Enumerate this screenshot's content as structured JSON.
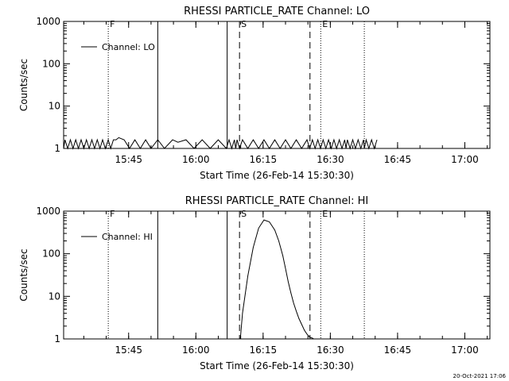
{
  "footer": {
    "timestamp": "20-Oct-2021 17:06"
  },
  "colors": {
    "foreground": "#000000",
    "background": "#ffffff"
  },
  "chart_data": [
    {
      "type": "line",
      "title": "RHESSI PARTICLE_RATE Channel: LO",
      "xlabel": "Start Time (26-Feb-14 15:30:30)",
      "ylabel": "Counts/sec",
      "yscale": "log",
      "ylim": [
        1,
        1000
      ],
      "xlim": [
        15.575,
        17.16
      ],
      "x_ticks": [
        {
          "x": 15.8167,
          "label": "15:45"
        },
        {
          "x": 16.0667,
          "label": "16:00"
        },
        {
          "x": 16.3167,
          "label": "16:15"
        },
        {
          "x": 16.5667,
          "label": "16:30"
        },
        {
          "x": 16.8167,
          "label": "16:45"
        },
        {
          "x": 17.0667,
          "label": "17:00"
        }
      ],
      "y_ticks": [
        {
          "y": 1,
          "label": "1"
        },
        {
          "y": 10,
          "label": "10"
        },
        {
          "y": 100,
          "label": "100"
        },
        {
          "y": 1000,
          "label": "1000"
        }
      ],
      "legend": {
        "label": "Channel: LO",
        "placement": "top-left"
      },
      "markers": [
        {
          "x": 15.741,
          "style": "dotted",
          "label": "F"
        },
        {
          "x": 15.925,
          "style": "solid",
          "label": ""
        },
        {
          "x": 16.183,
          "style": "solid",
          "label": ""
        },
        {
          "x": 16.229,
          "style": "dashed",
          "label": "S"
        },
        {
          "x": 16.491,
          "style": "dashed",
          "label": ""
        },
        {
          "x": 16.531,
          "style": "dotted",
          "label": "E"
        },
        {
          "x": 16.693,
          "style": "dotted",
          "label": ""
        }
      ],
      "series": [
        {
          "x": [
            15.575,
            15.58,
            15.59,
            15.6,
            15.61,
            15.62,
            15.63,
            15.64,
            15.65,
            15.66,
            15.67,
            15.68,
            15.69,
            15.7,
            15.71,
            15.72,
            15.73,
            15.741,
            15.75,
            15.76,
            15.77,
            15.78,
            15.8,
            15.82,
            15.84,
            15.86,
            15.88,
            15.9,
            15.925,
            15.95,
            15.98,
            16.0,
            16.03,
            16.06,
            16.09,
            16.12,
            16.15,
            16.18,
            16.19,
            16.2,
            16.21,
            16.215,
            16.22,
            16.229,
            16.24,
            16.26,
            16.28,
            16.3,
            16.32,
            16.34,
            16.36,
            16.38,
            16.4,
            16.42,
            16.44,
            16.46,
            16.48,
            16.49,
            16.5,
            16.51,
            16.52,
            16.53,
            16.54,
            16.55,
            16.56,
            16.57,
            16.58,
            16.59,
            16.6,
            16.61,
            16.62,
            16.625,
            16.63,
            16.64,
            16.65,
            16.66,
            16.67,
            16.68,
            16.69,
            16.693,
            16.7,
            16.71,
            16.72,
            16.73,
            16.74
          ],
          "y": [
            1,
            1.6,
            1,
            1.6,
            1,
            1.6,
            1,
            1.6,
            1,
            1.6,
            1,
            1.6,
            1,
            1.6,
            1,
            1.6,
            1,
            1.6,
            1,
            1.6,
            1.6,
            1.8,
            1.6,
            1,
            1.6,
            1,
            1.6,
            1,
            1.6,
            1,
            1.6,
            1.4,
            1.6,
            1,
            1.6,
            1,
            1.6,
            1,
            1.6,
            1,
            1.6,
            1,
            1.6,
            1,
            1.6,
            1,
            1.6,
            1,
            1.6,
            1,
            1.6,
            1,
            1.6,
            1,
            1.6,
            1,
            1.6,
            1,
            1.6,
            1,
            1.6,
            1,
            1.6,
            1,
            1.6,
            1,
            1.6,
            1,
            1.6,
            1,
            1.6,
            1,
            1.6,
            1,
            1.6,
            1,
            1.6,
            1,
            1.6,
            1,
            1.6,
            1,
            1.6,
            1,
            1.6
          ]
        }
      ]
    },
    {
      "type": "line",
      "title": "RHESSI PARTICLE_RATE Channel: HI",
      "xlabel": "Start Time (26-Feb-14 15:30:30)",
      "ylabel": "Counts/sec",
      "yscale": "log",
      "ylim": [
        1,
        1000
      ],
      "xlim": [
        15.575,
        17.16
      ],
      "x_ticks": [
        {
          "x": 15.8167,
          "label": "15:45"
        },
        {
          "x": 16.0667,
          "label": "16:00"
        },
        {
          "x": 16.3167,
          "label": "16:15"
        },
        {
          "x": 16.5667,
          "label": "16:30"
        },
        {
          "x": 16.8167,
          "label": "16:45"
        },
        {
          "x": 17.0667,
          "label": "17:00"
        }
      ],
      "y_ticks": [
        {
          "y": 1,
          "label": "1"
        },
        {
          "y": 10,
          "label": "10"
        },
        {
          "y": 100,
          "label": "100"
        },
        {
          "y": 1000,
          "label": "1000"
        }
      ],
      "legend": {
        "label": "Channel: HI",
        "placement": "top-left"
      },
      "markers": [
        {
          "x": 15.741,
          "style": "dotted",
          "label": "F"
        },
        {
          "x": 15.925,
          "style": "solid",
          "label": ""
        },
        {
          "x": 16.183,
          "style": "solid",
          "label": ""
        },
        {
          "x": 16.229,
          "style": "dashed",
          "label": "S"
        },
        {
          "x": 16.491,
          "style": "dashed",
          "label": ""
        },
        {
          "x": 16.531,
          "style": "dotted",
          "label": "E"
        },
        {
          "x": 16.693,
          "style": "dotted",
          "label": ""
        }
      ],
      "series": [
        {
          "x": [
            16.232,
            16.24,
            16.26,
            16.28,
            16.3,
            16.32,
            16.34,
            16.36,
            16.375,
            16.39,
            16.4,
            16.41,
            16.42,
            16.43,
            16.44,
            16.45,
            16.46,
            16.47,
            16.48,
            16.49,
            16.5,
            16.505
          ],
          "y": [
            1,
            4,
            30,
            140,
            400,
            620,
            560,
            360,
            200,
            90,
            45,
            22,
            12,
            7,
            4.5,
            3,
            2.2,
            1.6,
            1.3,
            1.1,
            1.05,
            1
          ]
        }
      ]
    }
  ]
}
